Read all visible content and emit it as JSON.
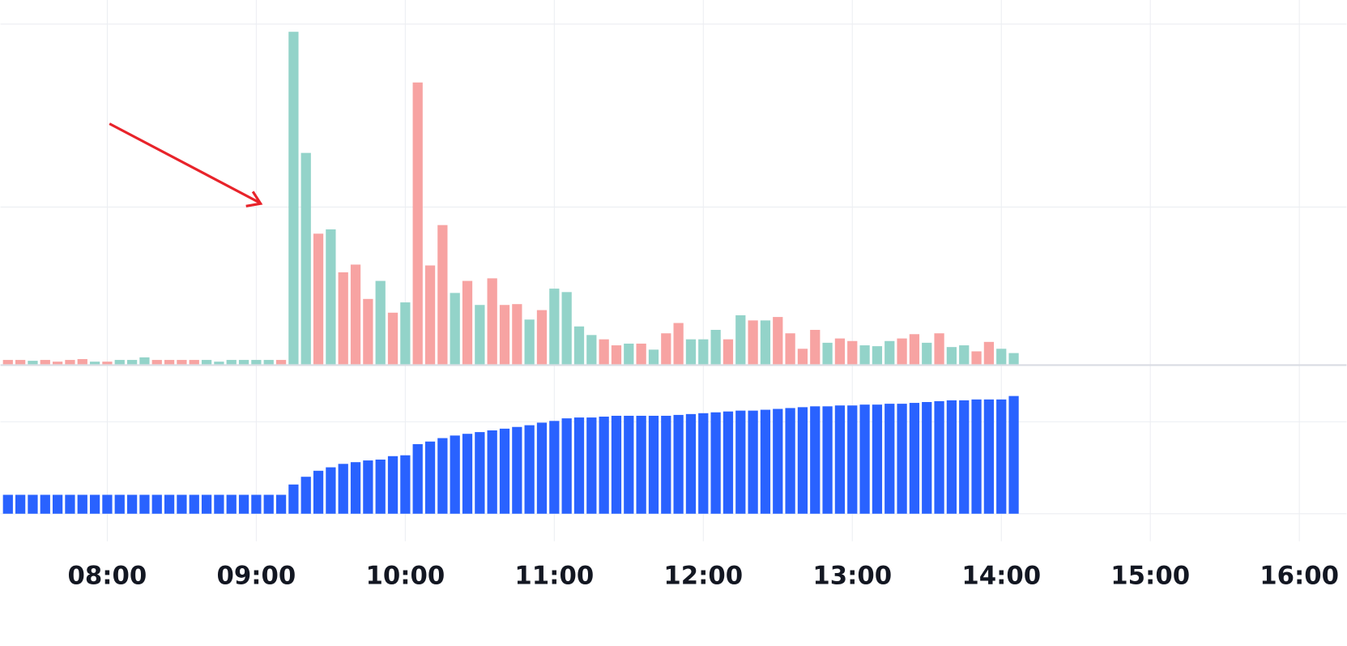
{
  "chart_data": {
    "type": "bar",
    "x": [
      "07:20",
      "07:25",
      "07:30",
      "07:35",
      "07:40",
      "07:45",
      "07:50",
      "07:55",
      "08:00",
      "08:05",
      "08:10",
      "08:15",
      "08:20",
      "08:25",
      "08:30",
      "08:35",
      "08:40",
      "08:45",
      "08:50",
      "08:55",
      "09:00",
      "09:05",
      "09:10",
      "09:15",
      "09:20",
      "09:25",
      "09:30",
      "09:35",
      "09:40",
      "09:45",
      "09:50",
      "09:55",
      "10:00",
      "10:05",
      "10:10",
      "10:15",
      "10:20",
      "10:25",
      "10:30",
      "10:35",
      "10:40",
      "10:45",
      "10:50",
      "10:55",
      "11:00",
      "11:05",
      "11:10",
      "11:15",
      "11:20",
      "11:25",
      "11:30",
      "11:35",
      "11:40",
      "11:45",
      "11:50",
      "11:55",
      "12:00",
      "12:05",
      "12:10",
      "12:15",
      "12:20",
      "12:25",
      "12:30",
      "12:35",
      "12:40",
      "12:45",
      "12:50",
      "12:55",
      "13:00",
      "13:05",
      "13:10",
      "13:15",
      "13:20",
      "13:25",
      "13:30",
      "13:35",
      "13:40",
      "13:45",
      "13:50",
      "13:55",
      "14:00",
      "14:05"
    ],
    "series": [
      {
        "values": [
          5,
          5,
          4,
          5,
          3,
          5,
          6,
          3,
          3,
          5,
          5,
          8,
          5,
          5,
          5,
          5,
          5,
          3,
          5,
          5,
          5,
          5,
          5,
          387,
          246,
          152,
          157,
          107,
          116,
          76,
          97,
          60,
          72,
          328,
          115,
          162,
          83,
          97,
          69,
          100,
          69,
          70,
          52,
          63,
          88,
          84,
          44,
          34,
          29,
          22,
          24,
          24,
          17,
          36,
          48,
          29,
          29,
          40,
          29,
          57,
          51,
          51,
          55,
          36,
          18,
          40,
          25,
          30,
          27,
          22,
          21,
          27,
          30,
          35,
          25,
          36,
          20,
          22,
          15,
          26,
          18,
          13
        ],
        "colors": [
          "#f7a3a2",
          "#f7a3a2",
          "#93d3c9",
          "#f7a3a2",
          "#f7a3a2",
          "#f7a3a2",
          "#f7a3a2",
          "#93d3c9",
          "#f7a3a2",
          "#93d3c9",
          "#93d3c9",
          "#93d3c9",
          "#f7a3a2",
          "#f7a3a2",
          "#f7a3a2",
          "#f7a3a2",
          "#93d3c9",
          "#93d3c9",
          "#93d3c9",
          "#93d3c9",
          "#93d3c9",
          "#93d3c9",
          "#f7a3a2",
          "#93d3c9",
          "#93d3c9",
          "#f7a3a2",
          "#93d3c9",
          "#f7a3a2",
          "#f7a3a2",
          "#f7a3a2",
          "#93d3c9",
          "#f7a3a2",
          "#93d3c9",
          "#f7a3a2",
          "#f7a3a2",
          "#f7a3a2",
          "#93d3c9",
          "#f7a3a2",
          "#93d3c9",
          "#f7a3a2",
          "#f7a3a2",
          "#f7a3a2",
          "#93d3c9",
          "#f7a3a2",
          "#93d3c9",
          "#93d3c9",
          "#93d3c9",
          "#93d3c9",
          "#f7a3a2",
          "#f7a3a2",
          "#93d3c9",
          "#f7a3a2",
          "#93d3c9",
          "#f7a3a2",
          "#f7a3a2",
          "#93d3c9",
          "#93d3c9",
          "#93d3c9",
          "#f7a3a2",
          "#93d3c9",
          "#f7a3a2",
          "#93d3c9",
          "#f7a3a2",
          "#f7a3a2",
          "#f7a3a2",
          "#f7a3a2",
          "#93d3c9",
          "#f7a3a2",
          "#f7a3a2",
          "#93d3c9",
          "#93d3c9",
          "#93d3c9",
          "#f7a3a2",
          "#f7a3a2",
          "#93d3c9",
          "#f7a3a2",
          "#93d3c9",
          "#93d3c9",
          "#f7a3a2",
          "#f7a3a2",
          "#93d3c9",
          "#93d3c9"
        ]
      },
      {
        "axis": "y2",
        "color": "#2962ff",
        "values": [
          22,
          22,
          22,
          22,
          22,
          22,
          22,
          22,
          22,
          22,
          22,
          22,
          22,
          22,
          22,
          22,
          22,
          22,
          22,
          22,
          22,
          22,
          22,
          34,
          43,
          50,
          54,
          58,
          60,
          62,
          63,
          67,
          68,
          81,
          84,
          88,
          91,
          93,
          95,
          97,
          99,
          101,
          103,
          106,
          108,
          111,
          112,
          112,
          113,
          114,
          114,
          114,
          114,
          114,
          115,
          116,
          117,
          118,
          119,
          120,
          120,
          121,
          122,
          123,
          124,
          125,
          125,
          126,
          126,
          127,
          127,
          128,
          128,
          129,
          130,
          131,
          132,
          132,
          133,
          133,
          133,
          137
        ]
      }
    ],
    "xlim": [
      "07:17",
      "16:19"
    ],
    "xticks": [
      "08:00",
      "09:00",
      "10:00",
      "11:00",
      "12:00",
      "13:00",
      "14:00",
      "15:00",
      "16:00"
    ],
    "ylim": [
      0,
      400
    ],
    "y2lim": [
      0,
      150
    ],
    "grid": true
  }
}
